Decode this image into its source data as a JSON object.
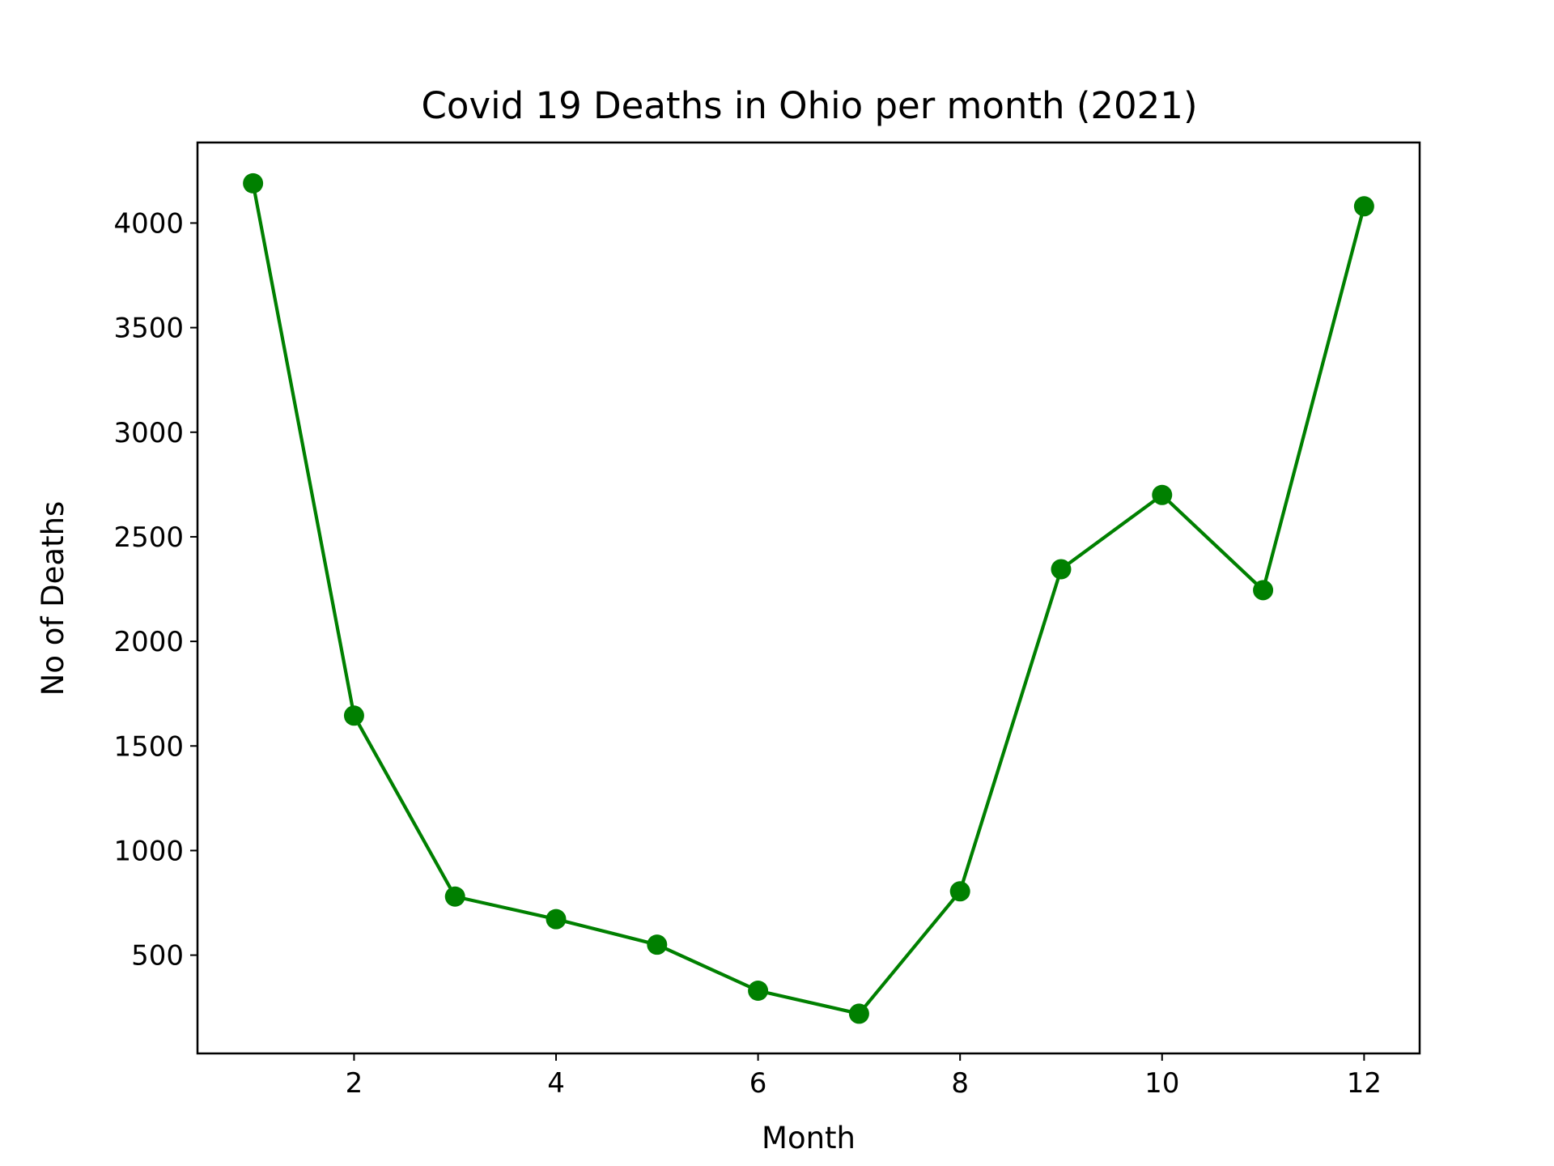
{
  "chart_data": {
    "type": "line",
    "title": "Covid 19 Deaths in Ohio per month (2021)",
    "xlabel": "Month",
    "ylabel": "No of Deaths",
    "x": [
      1,
      2,
      3,
      4,
      5,
      6,
      7,
      8,
      9,
      10,
      11,
      12
    ],
    "values": [
      4190,
      1645,
      780,
      672,
      550,
      330,
      220,
      805,
      2345,
      2700,
      2245,
      4080
    ],
    "xlim": [
      0.45,
      12.55
    ],
    "ylim": [
      30,
      4385
    ],
    "xticks": [
      2,
      4,
      6,
      8,
      10,
      12
    ],
    "yticks": [
      500,
      1000,
      1500,
      2000,
      2500,
      3000,
      3500,
      4000
    ],
    "grid": false,
    "line_color": "#008000",
    "marker": "circle"
  }
}
